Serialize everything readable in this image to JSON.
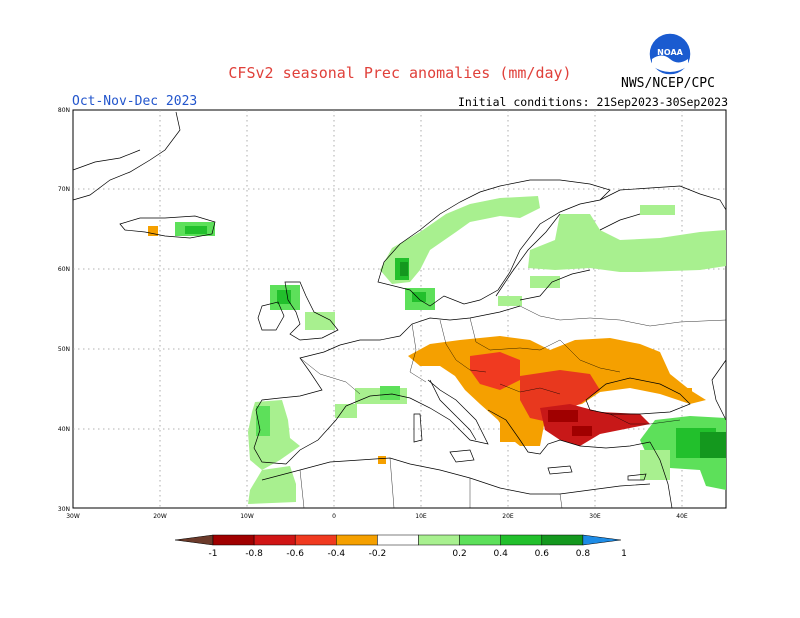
{
  "header": {
    "title": "CFSv2 seasonal Prec anomalies (mm/day)",
    "period": "Oct-Nov-Dec 2023",
    "initial_conditions": "Initial conditions: 21Sep2023-30Sep2023",
    "agency": "NWS/NCEP/CPC",
    "logo_text": "NOAA"
  },
  "map": {
    "lat_labels": [
      "80N",
      "70N",
      "60N",
      "50N",
      "40N",
      "30N"
    ],
    "lon_labels": [
      "30W",
      "20W",
      "10W",
      "0",
      "10E",
      "20E",
      "30E",
      "40E"
    ],
    "lon_range": [
      -30,
      45
    ],
    "lat_range": [
      30,
      80
    ]
  },
  "colorbar": {
    "labels": [
      "-1",
      "-0.8",
      "-0.6",
      "-0.4",
      "-0.2",
      "0.2",
      "0.4",
      "0.6",
      "0.8",
      "1"
    ],
    "colors": [
      "#6b3a2a",
      "#a00000",
      "#d01515",
      "#f03a20",
      "#f5a000",
      "#ffffff",
      "#a8f08f",
      "#5de05a",
      "#22c02c",
      "#14981e",
      "#1e8ce6"
    ]
  },
  "anomaly_regions": [
    {
      "name": "balkans-dry",
      "category": "-0.6",
      "color": "#e8381e"
    },
    {
      "name": "turkey-dry",
      "category": "-0.8",
      "color": "#c81818"
    },
    {
      "name": "central-europe-dry",
      "category": "-0.2",
      "color": "#f5a000"
    },
    {
      "name": "ukraine-dry",
      "category": "-0.2",
      "color": "#f5a000"
    },
    {
      "name": "scandinavia-wet",
      "category": "0.2",
      "color": "#a8f08f"
    },
    {
      "name": "russia-wet",
      "category": "0.2",
      "color": "#a8f08f"
    },
    {
      "name": "caucasus-wet",
      "category": "0.4",
      "color": "#5de05a"
    },
    {
      "name": "iberia-wet",
      "category": "0.2",
      "color": "#a8f08f"
    },
    {
      "name": "iceland-wet",
      "category": "0.4",
      "color": "#5de05a"
    }
  ]
}
